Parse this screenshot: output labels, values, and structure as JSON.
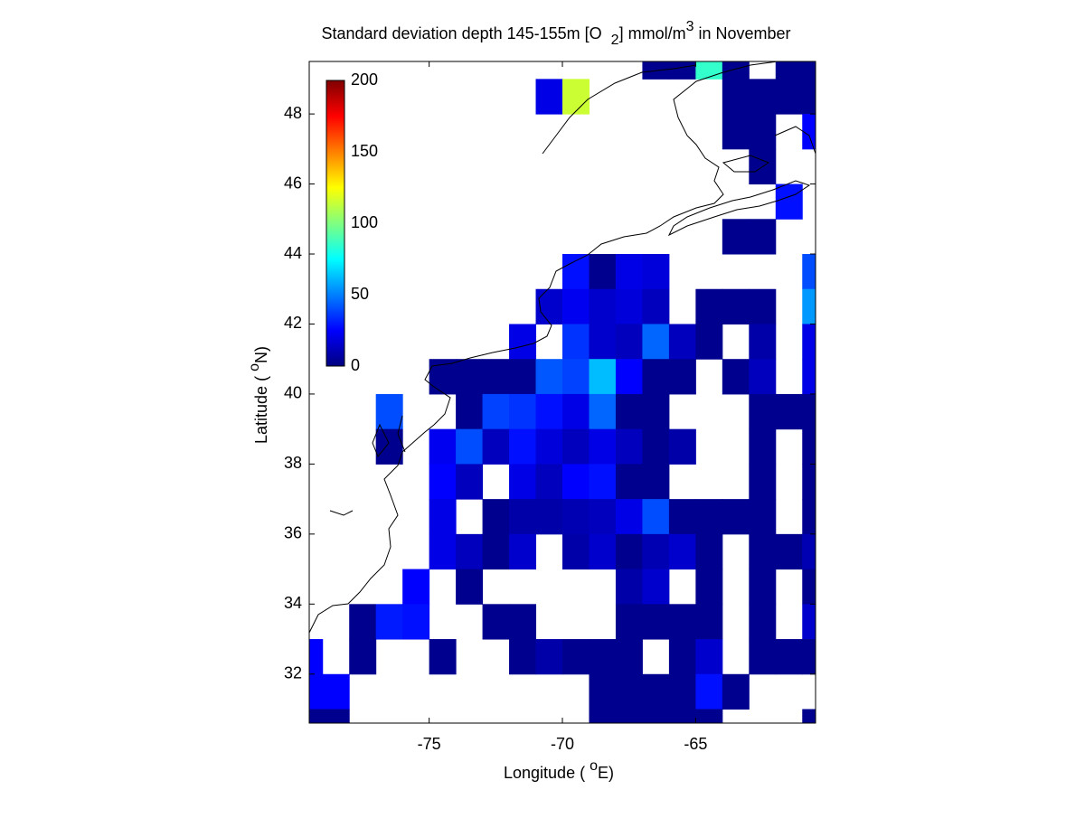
{
  "chart_data": {
    "type": "heatmap",
    "title": [
      "Standard deviation depth 145-155m [O",
      "2",
      "] mmol/m",
      "3",
      " in November"
    ],
    "xlabel": [
      "Longitude ( ",
      "o",
      "E)"
    ],
    "ylabel": [
      "Latitude ( ",
      "o",
      "N)"
    ],
    "x": [
      -79.5,
      -78.5,
      -77.5,
      -76.5,
      -75.5,
      -74.5,
      -73.5,
      -72.5,
      -71.5,
      -70.5,
      -69.5,
      -68.5,
      -67.5,
      -66.5,
      -65.5,
      -64.5,
      -63.5,
      -62.5,
      -61.5,
      -60.5
    ],
    "y": [
      49.5,
      48.5,
      47.5,
      46.5,
      45.5,
      44.5,
      43.5,
      42.5,
      41.5,
      40.5,
      39.5,
      38.5,
      37.5,
      36.5,
      35.5,
      34.5,
      33.5,
      32.5,
      31.5,
      30.5
    ],
    "values": [
      [
        null,
        null,
        null,
        null,
        null,
        null,
        null,
        null,
        null,
        null,
        null,
        null,
        null,
        3,
        3,
        85,
        3,
        null,
        3,
        3
      ],
      [
        null,
        null,
        null,
        null,
        null,
        null,
        null,
        null,
        null,
        20,
        115,
        null,
        null,
        null,
        null,
        null,
        3,
        3,
        3,
        3
      ],
      [
        null,
        null,
        null,
        null,
        null,
        null,
        null,
        null,
        null,
        null,
        null,
        null,
        null,
        null,
        null,
        null,
        3,
        3,
        null,
        25
      ],
      [
        null,
        null,
        null,
        null,
        null,
        null,
        null,
        null,
        null,
        null,
        null,
        null,
        null,
        null,
        null,
        null,
        null,
        3,
        null,
        null
      ],
      [
        null,
        null,
        null,
        null,
        null,
        null,
        null,
        null,
        null,
        null,
        null,
        null,
        null,
        null,
        null,
        null,
        null,
        null,
        28,
        null
      ],
      [
        null,
        null,
        null,
        null,
        null,
        null,
        null,
        null,
        null,
        null,
        null,
        null,
        null,
        null,
        null,
        null,
        3,
        3,
        null,
        null
      ],
      [
        null,
        null,
        null,
        null,
        null,
        null,
        null,
        null,
        null,
        null,
        28,
        3,
        20,
        18,
        null,
        null,
        null,
        null,
        null,
        40
      ],
      [
        null,
        null,
        null,
        null,
        null,
        null,
        null,
        null,
        null,
        15,
        22,
        15,
        18,
        12,
        null,
        3,
        3,
        3,
        null,
        55
      ],
      [
        null,
        null,
        null,
        null,
        null,
        null,
        null,
        null,
        20,
        null,
        35,
        15,
        12,
        45,
        12,
        3,
        null,
        8,
        null,
        20
      ],
      [
        null,
        null,
        null,
        null,
        null,
        3,
        3,
        3,
        3,
        42,
        38,
        62,
        25,
        3,
        3,
        null,
        3,
        12,
        null,
        20
      ],
      [
        null,
        null,
        null,
        40,
        null,
        null,
        3,
        38,
        35,
        28,
        20,
        45,
        3,
        3,
        null,
        null,
        null,
        3,
        3,
        3
      ],
      [
        null,
        null,
        null,
        3,
        null,
        22,
        40,
        12,
        28,
        18,
        12,
        20,
        12,
        3,
        8,
        null,
        null,
        3,
        null,
        3
      ],
      [
        null,
        null,
        null,
        null,
        null,
        25,
        12,
        null,
        20,
        12,
        25,
        28,
        3,
        3,
        null,
        null,
        null,
        3,
        null,
        3
      ],
      [
        null,
        null,
        null,
        null,
        null,
        20,
        null,
        3,
        8,
        8,
        10,
        12,
        20,
        40,
        3,
        3,
        3,
        3,
        null,
        3
      ],
      [
        null,
        null,
        null,
        null,
        null,
        20,
        12,
        3,
        15,
        null,
        8,
        15,
        3,
        10,
        15,
        3,
        null,
        3,
        3,
        10
      ],
      [
        null,
        null,
        null,
        null,
        25,
        null,
        3,
        null,
        null,
        null,
        null,
        null,
        8,
        15,
        null,
        3,
        null,
        3,
        null,
        3
      ],
      [
        null,
        null,
        3,
        30,
        28,
        null,
        null,
        3,
        3,
        null,
        null,
        null,
        3,
        3,
        3,
        3,
        null,
        3,
        null,
        15
      ],
      [
        25,
        null,
        3,
        null,
        null,
        3,
        null,
        null,
        3,
        8,
        3,
        3,
        3,
        null,
        3,
        15,
        null,
        3,
        3,
        3
      ],
      [
        25,
        25,
        null,
        null,
        null,
        null,
        null,
        null,
        null,
        null,
        null,
        3,
        3,
        3,
        3,
        28,
        3,
        null,
        null,
        null
      ],
      [
        3,
        3,
        null,
        null,
        null,
        null,
        null,
        null,
        null,
        null,
        null,
        3,
        3,
        3,
        3,
        3,
        null,
        null,
        null,
        3
      ]
    ],
    "xlim": [
      -79.5,
      -60.5
    ],
    "ylim": [
      30.6,
      49.5
    ],
    "xticks": [
      -75,
      -70,
      -65
    ],
    "yticks": [
      32,
      34,
      36,
      38,
      40,
      42,
      44,
      46,
      48
    ],
    "colormap": "jet",
    "clim": [
      0,
      200
    ],
    "cticks": [
      0,
      50,
      100,
      150,
      200
    ]
  }
}
